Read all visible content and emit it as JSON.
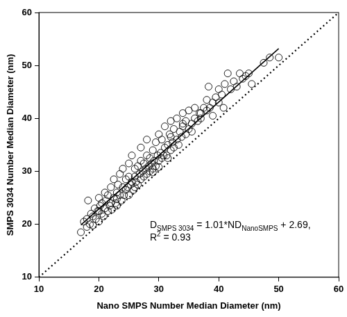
{
  "chart_data": {
    "type": "scatter",
    "x_label": "Nano SMPS Number Median Diameter (nm)",
    "y_label": "SMPS 3034 Number Median Diameter (nm)",
    "xlim": [
      10,
      60
    ],
    "ylim": [
      10,
      60
    ],
    "xticks": [
      10,
      20,
      30,
      40,
      50,
      60
    ],
    "yticks": [
      10,
      20,
      30,
      40,
      50,
      60
    ],
    "grid": false,
    "annotations": [
      [
        {
          "text": "D"
        },
        {
          "text": "SMPS 3034",
          "sub": true
        },
        {
          "text": " = 1.01*ND"
        },
        {
          "text": "NanoSMPS",
          "sub": true
        },
        {
          "text": " + 2.69,"
        }
      ],
      [
        {
          "text": "R"
        },
        {
          "text": "2",
          "sup": true
        },
        {
          "text": " = 0.93"
        }
      ]
    ],
    "series": [
      {
        "type": "scatter",
        "marker": "circle",
        "color": "#000000",
        "x": [
          17.0,
          17.5,
          18.0,
          18.0,
          18.2,
          18.5,
          18.7,
          19.0,
          19.0,
          19.3,
          19.5,
          19.8,
          20.0,
          20.0,
          20.2,
          20.5,
          20.5,
          20.8,
          21.0,
          21.0,
          21.2,
          21.5,
          21.5,
          21.8,
          22.0,
          22.0,
          22.2,
          22.5,
          22.5,
          22.8,
          23.0,
          23.0,
          23.2,
          23.5,
          23.5,
          23.8,
          24.0,
          24.0,
          24.2,
          24.5,
          24.5,
          24.8,
          25.0,
          25.0,
          25.0,
          25.3,
          25.5,
          25.5,
          25.8,
          26.0,
          26.0,
          26.2,
          26.5,
          26.5,
          26.8,
          27.0,
          27.0,
          27.0,
          27.3,
          27.5,
          27.5,
          27.8,
          28.0,
          28.0,
          28.0,
          28.3,
          28.5,
          28.5,
          28.8,
          29.0,
          29.0,
          29.2,
          29.5,
          29.5,
          29.8,
          30.0,
          30.0,
          30.0,
          30.3,
          30.5,
          30.5,
          30.8,
          31.0,
          31.0,
          31.3,
          31.5,
          31.8,
          32.0,
          32.0,
          32.3,
          32.5,
          32.5,
          33.0,
          33.0,
          33.3,
          33.5,
          33.8,
          34.0,
          34.0,
          34.5,
          34.5,
          35.0,
          35.0,
          35.5,
          35.5,
          36.0,
          36.0,
          36.5,
          37.0,
          37.0,
          37.5,
          38.0,
          38.0,
          38.5,
          39.0,
          39.0,
          39.5,
          40.0,
          40.0,
          40.5,
          40.8,
          41.0,
          42.0,
          42.5,
          43.0,
          43.5,
          44.0,
          44.5,
          45.0,
          45.5,
          47.5,
          48.5,
          50.0,
          34.0,
          36.8,
          31.5,
          29.0,
          26.0,
          23.0,
          20.0,
          32.0,
          38.3,
          41.5
        ],
        "values": [
          18.5,
          20.5,
          19.5,
          21.0,
          24.5,
          20.0,
          22.0,
          21.5,
          19.8,
          23.0,
          21.0,
          22.5,
          20.5,
          25.0,
          23.5,
          22.0,
          24.0,
          21.5,
          23.0,
          26.0,
          24.5,
          22.5,
          25.5,
          23.5,
          24.0,
          27.0,
          22.8,
          25.0,
          28.5,
          24.0,
          26.0,
          23.5,
          27.5,
          25.5,
          29.5,
          24.5,
          27.0,
          30.5,
          25.5,
          26.5,
          28.5,
          27.0,
          25.5,
          29.0,
          31.5,
          27.5,
          28.0,
          33.0,
          26.5,
          29.0,
          30.5,
          28.0,
          27.5,
          31.0,
          29.5,
          28.5,
          32.0,
          34.5,
          30.0,
          29.0,
          31.5,
          30.5,
          29.5,
          33.0,
          36.0,
          31.0,
          30.0,
          32.5,
          31.5,
          30.5,
          34.0,
          32.0,
          31.0,
          35.5,
          33.0,
          32.0,
          37.0,
          30.8,
          33.5,
          32.5,
          36.0,
          33.0,
          34.5,
          38.5,
          33.0,
          35.0,
          37.0,
          34.0,
          39.5,
          35.5,
          34.5,
          38.0,
          36.0,
          40.0,
          35.0,
          37.5,
          36.5,
          38.5,
          41.0,
          37.0,
          39.5,
          38.0,
          41.5,
          39.0,
          37.5,
          40.0,
          42.0,
          39.5,
          41.0,
          40.0,
          42.0,
          41.5,
          43.5,
          42.0,
          43.0,
          40.5,
          44.0,
          43.0,
          45.5,
          44.5,
          42.0,
          46.5,
          45.5,
          47.0,
          46.0,
          48.5,
          47.5,
          48.0,
          48.5,
          46.5,
          50.5,
          51.5,
          51.5,
          39.0,
          41.0,
          32.5,
          29.8,
          27.0,
          24.8,
          22.5,
          36.5,
          46.0,
          48.5
        ]
      },
      {
        "type": "line",
        "line_style": "solid",
        "color": "#000000",
        "x": [
          17,
          50
        ],
        "values": [
          19.86,
          53.19
        ]
      },
      {
        "type": "line",
        "line_style": "dotted",
        "color": "#000000",
        "x": [
          10,
          60
        ],
        "values": [
          10,
          60
        ]
      }
    ]
  }
}
